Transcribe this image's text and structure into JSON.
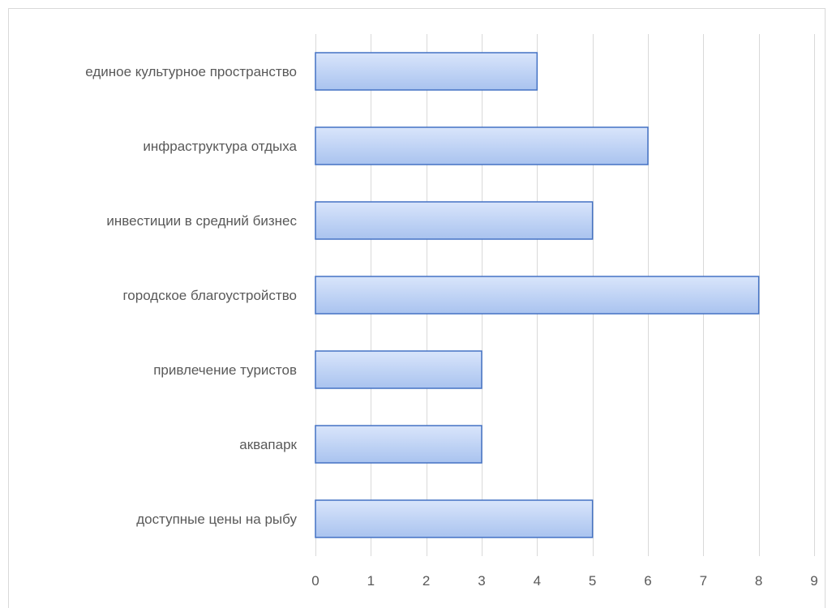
{
  "chart_data": {
    "type": "bar",
    "orientation": "horizontal",
    "categories": [
      "доступные цены на рыбу",
      "аквапарк",
      "привлечение туристов",
      "городское благоустройство",
      "инвестиции в средний бизнес",
      "инфраструктура отдыха",
      "единое культурное пространство"
    ],
    "values": [
      5,
      3,
      3,
      8,
      5,
      6,
      4
    ],
    "title": "",
    "xlabel": "",
    "ylabel": "",
    "xlim": [
      0,
      9
    ],
    "x_ticks": [
      "0",
      "1",
      "2",
      "3",
      "4",
      "5",
      "6",
      "7",
      "8",
      "9"
    ],
    "grid": "vertical",
    "legend": "none",
    "colors": {
      "bar_fill_top": "#d9e5fb",
      "bar_fill_bottom": "#a9c3ef",
      "bar_outline": "#4472c4",
      "gridline": "#d9d9d9",
      "text": "#595959"
    }
  }
}
